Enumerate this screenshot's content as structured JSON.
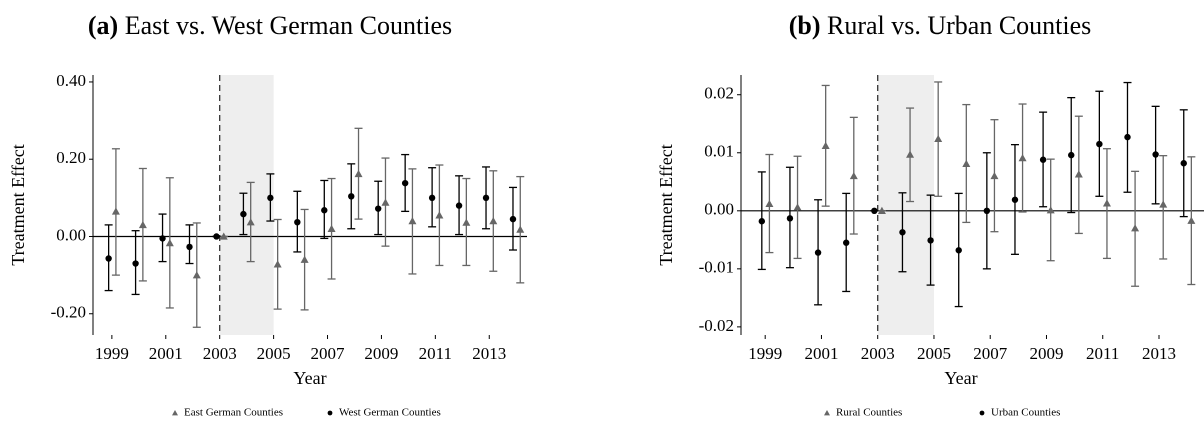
{
  "chart_data": [
    {
      "type": "errorbar",
      "panel_label": "(a)",
      "title": "East vs. West German Counties",
      "xlabel": "Year",
      "ylabel": "Treatment Effect",
      "x": [
        1999,
        2000,
        2001,
        2002,
        2003,
        2004,
        2005,
        2006,
        2007,
        2008,
        2009,
        2010,
        2011,
        2012,
        2013,
        2014
      ],
      "xlim": [
        1998.3,
        2014.4
      ],
      "xticks": [
        1999,
        2001,
        2003,
        2005,
        2007,
        2009,
        2011,
        2013
      ],
      "ylim": [
        -0.255,
        0.418
      ],
      "yticks": [
        {
          "value": -0.2,
          "label": "-0.20"
        },
        {
          "value": 0,
          "label": "0.00"
        },
        {
          "value": 0.2,
          "label": "0.20"
        },
        {
          "value": 0.4,
          "label": "0.40"
        }
      ],
      "hline": 0,
      "vline": 2003,
      "shade": [
        2003,
        2005
      ],
      "series": [
        {
          "name": "East German Counties",
          "color": "#666666",
          "marker": "triangle",
          "values": [
            0.065,
            0.03,
            -0.017,
            -0.1,
            0,
            0.037,
            -0.072,
            -0.06,
            0.02,
            0.162,
            0.088,
            0.04,
            0.055,
            0.036,
            0.04,
            0.018
          ],
          "lower": [
            -0.1,
            -0.115,
            -0.185,
            -0.235,
            0,
            -0.065,
            -0.188,
            -0.19,
            -0.11,
            0.045,
            -0.025,
            -0.097,
            -0.075,
            -0.075,
            -0.09,
            -0.12
          ],
          "upper": [
            0.227,
            0.176,
            0.152,
            0.035,
            0,
            0.14,
            0.044,
            0.07,
            0.15,
            0.28,
            0.203,
            0.175,
            0.185,
            0.15,
            0.17,
            0.155
          ]
        },
        {
          "name": "West German Counties",
          "color": "#000000",
          "marker": "circle",
          "values": [
            -0.057,
            -0.07,
            -0.005,
            -0.027,
            0,
            0.058,
            0.1,
            0.037,
            0.068,
            0.104,
            0.072,
            0.138,
            0.1,
            0.08,
            0.1,
            0.045
          ],
          "lower": [
            -0.14,
            -0.15,
            -0.065,
            -0.07,
            0,
            0.005,
            0.04,
            -0.04,
            -0.005,
            0.02,
            0.005,
            0.065,
            0.025,
            0.005,
            0.02,
            -0.035
          ],
          "upper": [
            0.03,
            0.015,
            0.058,
            0.03,
            0,
            0.112,
            0.162,
            0.117,
            0.145,
            0.188,
            0.143,
            0.212,
            0.178,
            0.157,
            0.18,
            0.127
          ]
        }
      ]
    },
    {
      "type": "errorbar",
      "panel_label": "(b)",
      "title": "Rural vs. Urban Counties",
      "xlabel": "Year",
      "ylabel": "Treatment Effect",
      "x": [
        1999,
        2000,
        2001,
        2002,
        2003,
        2004,
        2005,
        2006,
        2007,
        2008,
        2009,
        2010,
        2011,
        2012,
        2013,
        2014
      ],
      "xlim": [
        1998.14,
        2014.6
      ],
      "xticks": [
        1999,
        2001,
        2003,
        2005,
        2007,
        2009,
        2011,
        2013
      ],
      "ylim": [
        -0.0214,
        0.0234
      ],
      "yticks": [
        {
          "value": -0.02,
          "label": "-0.02"
        },
        {
          "value": -0.01,
          "label": "-0.01"
        },
        {
          "value": 0,
          "label": "0.00"
        },
        {
          "value": 0.01,
          "label": "0.01"
        },
        {
          "value": 0.02,
          "label": "0.02"
        }
      ],
      "hline": 0,
      "vline": 2003,
      "shade": [
        2003,
        2005
      ],
      "series": [
        {
          "name": "Rural Counties",
          "color": "#666666",
          "marker": "triangle",
          "values": [
            0.0012,
            0.0006,
            0.0112,
            0.006,
            0,
            0.0097,
            0.0124,
            0.0081,
            0.006,
            0.0091,
            0.0001,
            0.0063,
            0.0013,
            -0.003,
            0.0011,
            -0.0017
          ],
          "lower": [
            -0.0072,
            -0.0082,
            0.0008,
            -0.004,
            0,
            0.0016,
            0.0025,
            -0.002,
            -0.0036,
            -0.0002,
            -0.0086,
            -0.0039,
            -0.0082,
            -0.013,
            -0.0083,
            -0.0127
          ],
          "upper": [
            0.0097,
            0.0094,
            0.0216,
            0.0161,
            0,
            0.0177,
            0.0222,
            0.0183,
            0.0157,
            0.0184,
            0.0089,
            0.0163,
            0.0107,
            0.0068,
            0.0095,
            0.0093
          ]
        },
        {
          "name": "Urban Counties",
          "color": "#000000",
          "marker": "circle",
          "values": [
            -0.0018,
            -0.0013,
            -0.0072,
            -0.0055,
            0,
            -0.0037,
            -0.0051,
            -0.0068,
            0,
            0.0019,
            0.0088,
            0.0096,
            0.0115,
            0.0127,
            0.0097,
            0.0082
          ],
          "lower": [
            -0.0101,
            -0.0098,
            -0.0162,
            -0.0139,
            0,
            -0.0105,
            -0.0128,
            -0.0165,
            -0.01,
            -0.0075,
            0.0007,
            -0.0003,
            0.0025,
            0.0032,
            0.0012,
            -0.001
          ],
          "upper": [
            0.0067,
            0.0075,
            0.0019,
            0.003,
            0,
            0.0031,
            0.0027,
            0.003,
            0.01,
            0.0114,
            0.017,
            0.0195,
            0.0206,
            0.0221,
            0.018,
            0.0174
          ]
        }
      ]
    }
  ]
}
